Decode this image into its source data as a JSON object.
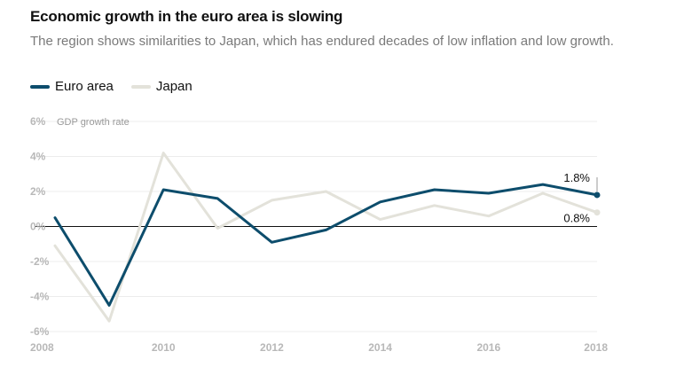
{
  "chart_data": {
    "type": "line",
    "title": "Economic growth in the euro area is slowing",
    "subtitle": "The region shows similarities to Japan, which has endured decades of low inflation and low growth.",
    "ylabel": "GDP growth rate",
    "xlabel": "",
    "x": [
      2008,
      2009,
      2010,
      2011,
      2012,
      2013,
      2014,
      2015,
      2016,
      2017,
      2018
    ],
    "xticks": [
      2008,
      2010,
      2012,
      2014,
      2016,
      2018
    ],
    "yticks": [
      6,
      4,
      2,
      0,
      -2,
      -4,
      -6
    ],
    "ytick_labels": [
      "6%",
      "4%",
      "2%",
      "0%",
      "-2%",
      "-4%",
      "-6%"
    ],
    "xlim": [
      2008,
      2018
    ],
    "ylim": [
      -6,
      6
    ],
    "grid": true,
    "legend_position": "top-left",
    "series": [
      {
        "name": "Euro area",
        "color": "#0d4d6c",
        "values": [
          0.5,
          -4.5,
          2.1,
          1.6,
          -0.9,
          -0.2,
          1.4,
          2.1,
          1.9,
          2.4,
          1.8
        ]
      },
      {
        "name": "Japan",
        "color": "#e3e2da",
        "values": [
          -1.1,
          -5.4,
          4.2,
          -0.1,
          1.5,
          2.0,
          0.4,
          1.2,
          0.6,
          1.9,
          0.8
        ]
      }
    ],
    "end_labels": [
      "1.8%",
      "0.8%"
    ]
  }
}
